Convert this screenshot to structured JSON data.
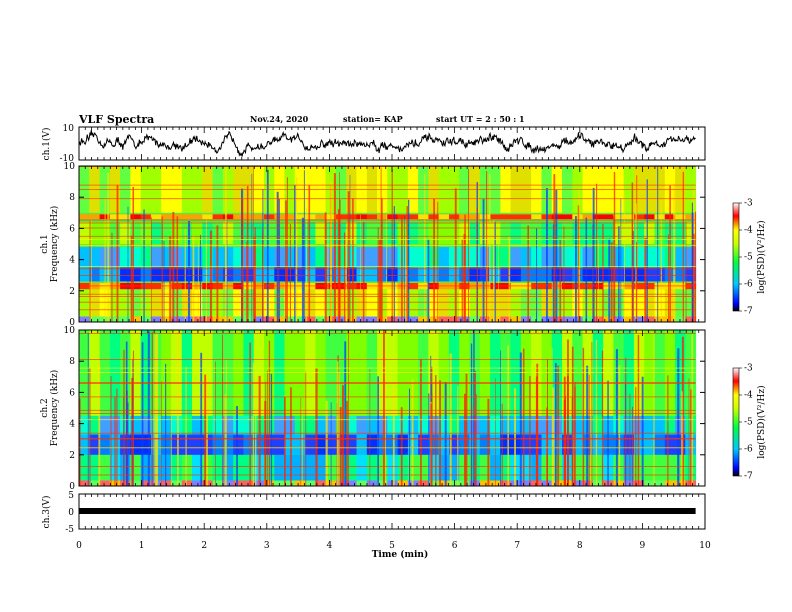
{
  "header": {
    "title": "VLF Spectra",
    "date": "Nov.24, 2020",
    "station": "station= KAP",
    "start": "start  UT =   2  : 50 : 1"
  },
  "chart_data": [
    {
      "type": "line",
      "name": "ch1-waveform",
      "ylabel": "ch.1(V)",
      "ylim": [
        -10,
        10
      ],
      "yticks": [
        "10",
        "-10"
      ],
      "x_range_min": [
        0,
        9.85
      ],
      "color": "#000000"
    },
    {
      "type": "heatmap",
      "name": "ch1-spectrogram",
      "ylabel": "ch.1\nFrequency (kHz)",
      "ylim": [
        0,
        10
      ],
      "yticks": [
        "0",
        "2",
        "4",
        "6",
        "8",
        "10"
      ],
      "x_range_min": [
        0,
        9.85
      ],
      "colorbar": {
        "label": "log(PSD)(V²/Hz)",
        "range": [
          -7,
          -3
        ],
        "ticks": [
          "-3",
          "-4",
          "-5",
          "-6",
          "-7"
        ]
      },
      "bands_khz": [
        {
          "from": 0,
          "to": 0.35,
          "level": "mixed"
        },
        {
          "from": 0.35,
          "to": 2.1,
          "level": "green-yellow"
        },
        {
          "from": 2.1,
          "to": 2.5,
          "level": "red"
        },
        {
          "from": 2.6,
          "to": 3.5,
          "level": "blue"
        },
        {
          "from": 3.5,
          "to": 4.8,
          "level": "cyan"
        },
        {
          "from": 5.0,
          "to": 6.4,
          "level": "green"
        },
        {
          "from": 6.6,
          "to": 6.9,
          "level": "red"
        },
        {
          "from": 7.0,
          "to": 10,
          "level": "green-yellow"
        }
      ]
    },
    {
      "type": "heatmap",
      "name": "ch2-spectrogram",
      "ylabel": "ch.2\nFrequency (kHz)",
      "ylim": [
        0,
        10
      ],
      "yticks": [
        "0",
        "2",
        "4",
        "6",
        "8",
        "10"
      ],
      "x_range_min": [
        0,
        9.85
      ],
      "colorbar": {
        "label": "log(PSD)(V²/Hz)",
        "range": [
          -7,
          -3
        ],
        "ticks": [
          "-3",
          "-4",
          "-5",
          "-6",
          "-7"
        ]
      },
      "bands_khz": [
        {
          "from": 0,
          "to": 0.35,
          "level": "mixed"
        },
        {
          "from": 0.35,
          "to": 2.0,
          "level": "cyan-green"
        },
        {
          "from": 2.0,
          "to": 3.3,
          "level": "blue"
        },
        {
          "from": 3.3,
          "to": 4.5,
          "level": "cyan"
        },
        {
          "from": 4.5,
          "to": 10,
          "level": "green"
        }
      ]
    },
    {
      "type": "line",
      "name": "ch3-trace",
      "ylabel": "ch.3(V)",
      "ylim": [
        -5,
        5
      ],
      "yticks": [
        "5",
        "0",
        "-5"
      ],
      "x_range_min": [
        0,
        9.85
      ],
      "y_value": 0
    }
  ],
  "x_axis": {
    "label": "Time (min)",
    "ticks": [
      "0",
      "1",
      "2",
      "3",
      "4",
      "5",
      "6",
      "7",
      "8",
      "9",
      "10"
    ],
    "xlim": [
      0,
      10
    ]
  }
}
